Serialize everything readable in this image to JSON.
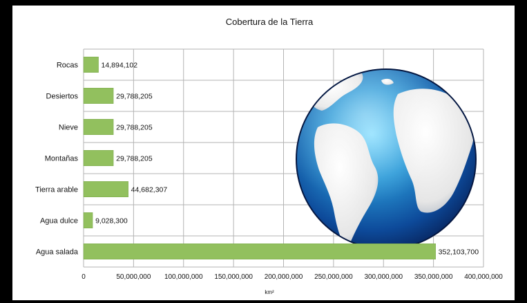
{
  "colors": {
    "bar": "#92c05e",
    "bar_edge": "#7aa84a",
    "grid": "#b3b3b3",
    "ocean_light": "#6fd0f5",
    "ocean_dark": "#0a2a6b",
    "land": "#f2f2f2"
  },
  "chart_data": {
    "type": "bar",
    "orientation": "horizontal",
    "title": "Cobertura de la Tierra",
    "xlabel": "km²",
    "ylabel": "",
    "xlim": [
      0,
      400000000
    ],
    "x_ticks": [
      0,
      50000000,
      100000000,
      150000000,
      200000000,
      250000000,
      300000000,
      350000000,
      400000000
    ],
    "x_tick_labels": [
      "0",
      "50,000,000",
      "100,000,000",
      "150,000,000",
      "200,000,000",
      "250,000,000",
      "300,000,000",
      "350,000,000",
      "400,000,000"
    ],
    "categories": [
      "Rocas",
      "Desiertos",
      "Nieve",
      "Montañas",
      "Tierra arable",
      "Agua dulce",
      "Agua salada"
    ],
    "values": [
      14894102,
      29788205,
      29788205,
      29788205,
      44682307,
      9028300,
      352103700
    ],
    "data_labels": [
      "14,894,102",
      "29,788,205",
      "29,788,205",
      "29,788,205",
      "44,682,307",
      "9,028,300",
      "352,103,700"
    ],
    "grid": true,
    "legend": "none",
    "decoration": "globe-icon"
  }
}
